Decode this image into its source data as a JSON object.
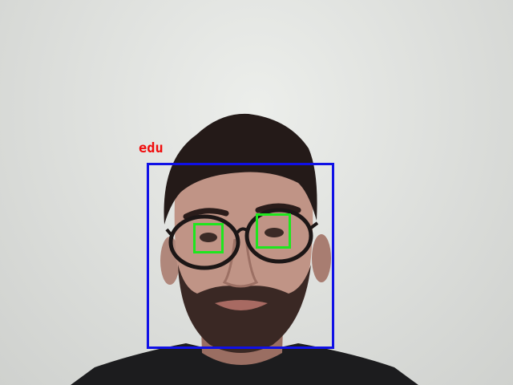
{
  "detection": {
    "face_label": "edu",
    "face_box_color": "#1010e6",
    "eye_box_color": "#1ee61e",
    "label_color": "#f00c0c"
  }
}
